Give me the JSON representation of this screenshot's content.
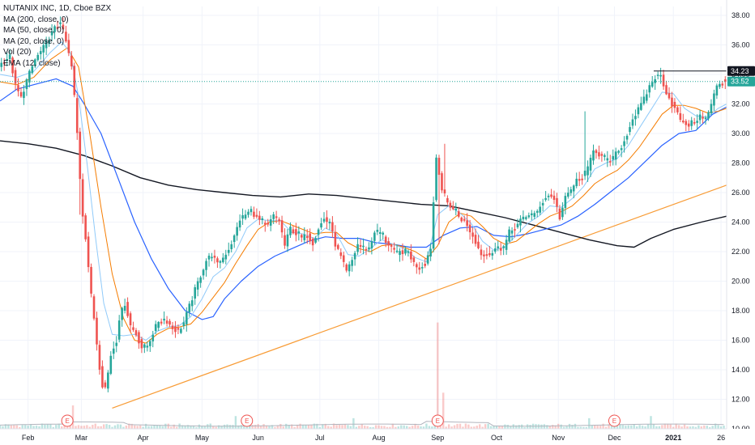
{
  "chart_data": {
    "type": "candlestick",
    "title": "NUTANIX INC, 1D, Cboe BZX",
    "legend": [
      "NUTANIX INC, 1D, Cboe BZX",
      "MA (200, close, 0)",
      "MA (50, close, 0)",
      "MA (20, close, 0)",
      "Vol (20)",
      "EMA (12, close)"
    ],
    "y_ticks": [
      "38.00",
      "36.00",
      "34.00",
      "32.00",
      "30.00",
      "28.00",
      "26.00",
      "24.00",
      "22.00",
      "20.00",
      "18.00",
      "16.00",
      "14.00",
      "12.00",
      "10.00"
    ],
    "ylim": [
      10,
      38.6
    ],
    "x_labels": [
      {
        "label": "Feb",
        "day": 10
      },
      {
        "label": "Mar",
        "day": 29
      },
      {
        "label": "Apr",
        "day": 51
      },
      {
        "label": "May",
        "day": 72
      },
      {
        "label": "Jun",
        "day": 92
      },
      {
        "label": "Jul",
        "day": 114
      },
      {
        "label": "Aug",
        "day": 135
      },
      {
        "label": "Sep",
        "day": 156
      },
      {
        "label": "Oct",
        "day": 177
      },
      {
        "label": "Nov",
        "day": 199
      },
      {
        "label": "Dec",
        "day": 219
      },
      {
        "label": "2021",
        "day": 240
      },
      {
        "label": "26",
        "day": 257
      }
    ],
    "day_range": [
      0,
      259
    ],
    "anchors": [
      [
        0,
        34.6
      ],
      [
        4,
        35.2
      ],
      [
        6,
        33.2
      ],
      [
        8,
        32.4
      ],
      [
        10,
        33.6
      ],
      [
        13,
        35.0
      ],
      [
        16,
        35.8
      ],
      [
        18,
        36.5
      ],
      [
        20,
        37.1
      ],
      [
        22,
        37.5
      ],
      [
        24,
        36.2
      ],
      [
        26,
        34.5
      ],
      [
        27,
        32.5
      ],
      [
        28,
        30.0
      ],
      [
        29,
        27.0
      ],
      [
        30,
        24.5
      ],
      [
        31,
        23.0
      ],
      [
        32,
        21.0
      ],
      [
        33,
        19.0
      ],
      [
        34,
        17.5
      ],
      [
        35,
        15.8
      ],
      [
        36,
        14.2
      ],
      [
        37,
        13.0
      ],
      [
        38,
        12.8
      ],
      [
        39,
        13.8
      ],
      [
        40,
        15.0
      ],
      [
        42,
        16.0
      ],
      [
        43,
        17.5
      ],
      [
        45,
        18.5
      ],
      [
        47,
        17.0
      ],
      [
        49,
        16.4
      ],
      [
        51,
        15.5
      ],
      [
        53,
        15.6
      ],
      [
        55,
        16.5
      ],
      [
        57,
        17.3
      ],
      [
        60,
        17.3
      ],
      [
        62,
        16.8
      ],
      [
        64,
        16.6
      ],
      [
        66,
        17.2
      ],
      [
        68,
        18.3
      ],
      [
        70,
        19.4
      ],
      [
        72,
        20.4
      ],
      [
        74,
        21.4
      ],
      [
        76,
        21.8
      ],
      [
        78,
        21.1
      ],
      [
        80,
        21.6
      ],
      [
        82,
        22.2
      ],
      [
        84,
        23.0
      ],
      [
        86,
        24.2
      ],
      [
        88,
        24.5
      ],
      [
        90,
        24.8
      ],
      [
        92,
        24.3
      ],
      [
        94,
        23.9
      ],
      [
        96,
        23.8
      ],
      [
        98,
        24.4
      ],
      [
        100,
        24.1
      ],
      [
        102,
        22.4
      ],
      [
        104,
        23.6
      ],
      [
        106,
        23.2
      ],
      [
        108,
        22.9
      ],
      [
        110,
        23.1
      ],
      [
        112,
        22.6
      ],
      [
        114,
        23.6
      ],
      [
        116,
        24.2
      ],
      [
        118,
        23.9
      ],
      [
        120,
        22.5
      ],
      [
        122,
        21.6
      ],
      [
        124,
        20.6
      ],
      [
        126,
        21.4
      ],
      [
        128,
        22.5
      ],
      [
        130,
        22.3
      ],
      [
        132,
        22.1
      ],
      [
        134,
        23.4
      ],
      [
        136,
        23.3
      ],
      [
        138,
        22.7
      ],
      [
        140,
        22.3
      ],
      [
        142,
        21.9
      ],
      [
        144,
        22.0
      ],
      [
        146,
        22.0
      ],
      [
        148,
        21.2
      ],
      [
        150,
        20.9
      ],
      [
        152,
        21.2
      ],
      [
        154,
        22.3
      ],
      [
        156,
        28.4
      ],
      [
        157,
        27.4
      ],
      [
        158,
        26.2
      ],
      [
        160,
        25.3
      ],
      [
        162,
        24.9
      ],
      [
        164,
        24.4
      ],
      [
        166,
        24.0
      ],
      [
        168,
        23.4
      ],
      [
        170,
        22.6
      ],
      [
        172,
        21.9
      ],
      [
        174,
        21.8
      ],
      [
        176,
        21.9
      ],
      [
        178,
        22.3
      ],
      [
        180,
        22.2
      ],
      [
        182,
        23.3
      ],
      [
        184,
        23.6
      ],
      [
        186,
        24.1
      ],
      [
        188,
        24.3
      ],
      [
        190,
        24.5
      ],
      [
        192,
        24.6
      ],
      [
        194,
        25.4
      ],
      [
        196,
        25.8
      ],
      [
        198,
        25.6
      ],
      [
        200,
        24.3
      ],
      [
        202,
        25.6
      ],
      [
        204,
        26.2
      ],
      [
        206,
        26.8
      ],
      [
        208,
        27.0
      ],
      [
        210,
        27.6
      ],
      [
        212,
        29.0
      ],
      [
        214,
        28.6
      ],
      [
        216,
        28.2
      ],
      [
        218,
        28.1
      ],
      [
        220,
        28.6
      ],
      [
        222,
        29.0
      ],
      [
        224,
        30.0
      ],
      [
        226,
        31.0
      ],
      [
        228,
        31.6
      ],
      [
        230,
        32.3
      ],
      [
        232,
        33.2
      ],
      [
        234,
        33.8
      ],
      [
        236,
        33.9
      ],
      [
        238,
        32.8
      ],
      [
        240,
        32.0
      ],
      [
        242,
        31.3
      ],
      [
        244,
        30.7
      ],
      [
        246,
        30.6
      ],
      [
        248,
        30.8
      ],
      [
        250,
        31.2
      ],
      [
        252,
        31.0
      ],
      [
        254,
        31.9
      ],
      [
        256,
        33.3
      ],
      [
        258,
        33.52
      ]
    ],
    "spikes": [
      {
        "day": 26,
        "y": 33.0
      },
      {
        "day": 28,
        "y": 24.5
      },
      {
        "day": 156,
        "y": 22.5
      },
      {
        "day": 158,
        "y": 29.3
      },
      {
        "day": 208,
        "y": 31.5
      }
    ],
    "trendline": {
      "start": [
        40,
        11.4
      ],
      "end": [
        259,
        26.5
      ],
      "color": "#f89c36"
    },
    "ma200": [
      [
        0,
        29.5
      ],
      [
        10,
        29.3
      ],
      [
        20,
        29.0
      ],
      [
        30,
        28.5
      ],
      [
        40,
        27.8
      ],
      [
        50,
        27.0
      ],
      [
        60,
        26.5
      ],
      [
        70,
        26.2
      ],
      [
        80,
        26.0
      ],
      [
        90,
        25.8
      ],
      [
        100,
        25.7
      ],
      [
        110,
        25.9
      ],
      [
        120,
        25.8
      ],
      [
        130,
        25.6
      ],
      [
        140,
        25.4
      ],
      [
        150,
        25.2
      ],
      [
        160,
        25.1
      ],
      [
        170,
        24.7
      ],
      [
        180,
        24.3
      ],
      [
        190,
        23.8
      ],
      [
        200,
        23.3
      ],
      [
        210,
        22.8
      ],
      [
        220,
        22.4
      ],
      [
        226,
        22.3
      ],
      [
        232,
        22.9
      ],
      [
        240,
        23.5
      ],
      [
        250,
        24.0
      ],
      [
        259,
        24.4
      ]
    ],
    "ma50": [
      [
        0,
        32.2
      ],
      [
        6,
        33.0
      ],
      [
        12,
        33.3
      ],
      [
        20,
        33.7
      ],
      [
        26,
        33.2
      ],
      [
        30,
        32.0
      ],
      [
        36,
        30.0
      ],
      [
        42,
        27.0
      ],
      [
        48,
        24.0
      ],
      [
        54,
        21.5
      ],
      [
        60,
        19.5
      ],
      [
        66,
        18.0
      ],
      [
        72,
        17.4
      ],
      [
        76,
        17.6
      ],
      [
        80,
        18.8
      ],
      [
        86,
        20.0
      ],
      [
        92,
        21.0
      ],
      [
        98,
        21.7
      ],
      [
        104,
        22.2
      ],
      [
        110,
        22.7
      ],
      [
        116,
        23.0
      ],
      [
        122,
        22.9
      ],
      [
        128,
        22.9
      ],
      [
        134,
        22.6
      ],
      [
        140,
        22.5
      ],
      [
        146,
        22.3
      ],
      [
        152,
        22.3
      ],
      [
        158,
        23.1
      ],
      [
        164,
        23.6
      ],
      [
        170,
        23.7
      ],
      [
        176,
        23.1
      ],
      [
        182,
        23.0
      ],
      [
        188,
        23.2
      ],
      [
        194,
        23.5
      ],
      [
        200,
        23.8
      ],
      [
        206,
        24.4
      ],
      [
        212,
        25.2
      ],
      [
        218,
        26.1
      ],
      [
        224,
        27.0
      ],
      [
        230,
        28.1
      ],
      [
        236,
        29.2
      ],
      [
        242,
        30.0
      ],
      [
        248,
        30.2
      ],
      [
        254,
        31.3
      ],
      [
        259,
        31.8
      ]
    ],
    "ema12": [
      [
        0,
        34.0
      ],
      [
        6,
        33.8
      ],
      [
        12,
        34.2
      ],
      [
        18,
        35.5
      ],
      [
        22,
        36.2
      ],
      [
        25,
        35.5
      ],
      [
        28,
        32.5
      ],
      [
        31,
        28.0
      ],
      [
        34,
        23.0
      ],
      [
        37,
        18.5
      ],
      [
        40,
        16.4
      ],
      [
        44,
        16.3
      ],
      [
        48,
        16.4
      ],
      [
        52,
        16.0
      ],
      [
        56,
        16.6
      ],
      [
        60,
        16.9
      ],
      [
        64,
        17.0
      ],
      [
        68,
        17.6
      ],
      [
        72,
        18.8
      ],
      [
        76,
        20.3
      ],
      [
        80,
        20.9
      ],
      [
        84,
        22.0
      ],
      [
        88,
        23.6
      ],
      [
        92,
        24.2
      ],
      [
        96,
        24.1
      ],
      [
        100,
        24.1
      ],
      [
        104,
        23.3
      ],
      [
        108,
        23.2
      ],
      [
        112,
        22.9
      ],
      [
        116,
        23.6
      ],
      [
        120,
        23.2
      ],
      [
        124,
        21.8
      ],
      [
        128,
        21.7
      ],
      [
        132,
        22.2
      ],
      [
        136,
        22.8
      ],
      [
        140,
        22.5
      ],
      [
        144,
        22.2
      ],
      [
        148,
        21.6
      ],
      [
        152,
        21.3
      ],
      [
        156,
        24.5
      ],
      [
        160,
        25.1
      ],
      [
        164,
        24.6
      ],
      [
        168,
        23.9
      ],
      [
        172,
        22.7
      ],
      [
        176,
        22.1
      ],
      [
        180,
        22.3
      ],
      [
        184,
        23.1
      ],
      [
        188,
        23.9
      ],
      [
        192,
        24.4
      ],
      [
        196,
        25.1
      ],
      [
        200,
        25.0
      ],
      [
        204,
        25.6
      ],
      [
        208,
        26.4
      ],
      [
        212,
        27.6
      ],
      [
        216,
        28.0
      ],
      [
        220,
        28.3
      ],
      [
        224,
        29.2
      ],
      [
        228,
        30.4
      ],
      [
        232,
        31.6
      ],
      [
        236,
        32.8
      ],
      [
        240,
        32.7
      ],
      [
        244,
        31.7
      ],
      [
        248,
        31.2
      ],
      [
        252,
        31.1
      ],
      [
        256,
        31.7
      ],
      [
        259,
        32.0
      ]
    ],
    "ma20": [
      [
        0,
        33.5
      ],
      [
        6,
        33.3
      ],
      [
        12,
        33.8
      ],
      [
        18,
        35.0
      ],
      [
        24,
        35.8
      ],
      [
        28,
        34.5
      ],
      [
        32,
        30.0
      ],
      [
        36,
        25.0
      ],
      [
        40,
        20.5
      ],
      [
        44,
        17.5
      ],
      [
        48,
        16.0
      ],
      [
        52,
        15.8
      ],
      [
        56,
        16.4
      ],
      [
        60,
        16.8
      ],
      [
        64,
        16.9
      ],
      [
        68,
        17.1
      ],
      [
        72,
        17.9
      ],
      [
        76,
        18.9
      ],
      [
        80,
        19.9
      ],
      [
        84,
        21.2
      ],
      [
        88,
        22.4
      ],
      [
        92,
        23.5
      ],
      [
        96,
        24.0
      ],
      [
        100,
        24.1
      ],
      [
        104,
        23.8
      ],
      [
        108,
        23.5
      ],
      [
        112,
        23.2
      ],
      [
        116,
        23.3
      ],
      [
        120,
        23.3
      ],
      [
        124,
        22.6
      ],
      [
        128,
        22.2
      ],
      [
        132,
        22.0
      ],
      [
        136,
        22.4
      ],
      [
        140,
        22.5
      ],
      [
        144,
        22.3
      ],
      [
        148,
        22.0
      ],
      [
        152,
        21.5
      ],
      [
        156,
        22.4
      ],
      [
        160,
        24.0
      ],
      [
        164,
        24.6
      ],
      [
        168,
        24.4
      ],
      [
        172,
        23.7
      ],
      [
        176,
        22.9
      ],
      [
        180,
        22.5
      ],
      [
        184,
        22.7
      ],
      [
        188,
        23.3
      ],
      [
        192,
        23.9
      ],
      [
        196,
        24.4
      ],
      [
        200,
        24.7
      ],
      [
        204,
        25.1
      ],
      [
        208,
        25.8
      ],
      [
        212,
        26.6
      ],
      [
        216,
        27.1
      ],
      [
        220,
        27.5
      ],
      [
        224,
        28.2
      ],
      [
        228,
        29.1
      ],
      [
        232,
        30.2
      ],
      [
        236,
        31.3
      ],
      [
        240,
        31.9
      ],
      [
        244,
        31.9
      ],
      [
        248,
        31.7
      ],
      [
        252,
        31.4
      ],
      [
        256,
        31.5
      ],
      [
        259,
        31.7
      ]
    ],
    "hline": {
      "from_day": 233,
      "value": 34.23
    },
    "current_price": 33.52,
    "price_tags": [
      {
        "label": "34.23",
        "value": 34.23,
        "bg": "#131722",
        "color": "#ffffff"
      },
      {
        "label": "33.52",
        "value": 33.52,
        "bg": "#26a69a",
        "color": "#ffffff"
      }
    ],
    "earnings_label": "E",
    "earnings_days": [
      24,
      88,
      156,
      219
    ],
    "volume": {
      "base_price": 10.0,
      "max_height_price": 17.2,
      "spikes": [
        {
          "day": 156,
          "frac": 1.0
        },
        {
          "day": 26,
          "frac": 0.22
        },
        {
          "day": 158,
          "frac": 0.34
        },
        {
          "day": 84,
          "frac": 0.12
        },
        {
          "day": 210,
          "frac": 0.1
        },
        {
          "day": 126,
          "frac": 0.1
        },
        {
          "day": 232,
          "frac": 0.12
        }
      ]
    },
    "colors": {
      "up": "#26a69a",
      "down": "#ef5350",
      "ma200": "#131722",
      "ma50": "#2962ff",
      "ma20": "#f57c00",
      "ema12": "#90caf9",
      "trend": "#f89c36",
      "grid": "#f0f3fa",
      "axis_text": "#131722",
      "earnings": "#ef5350"
    }
  }
}
